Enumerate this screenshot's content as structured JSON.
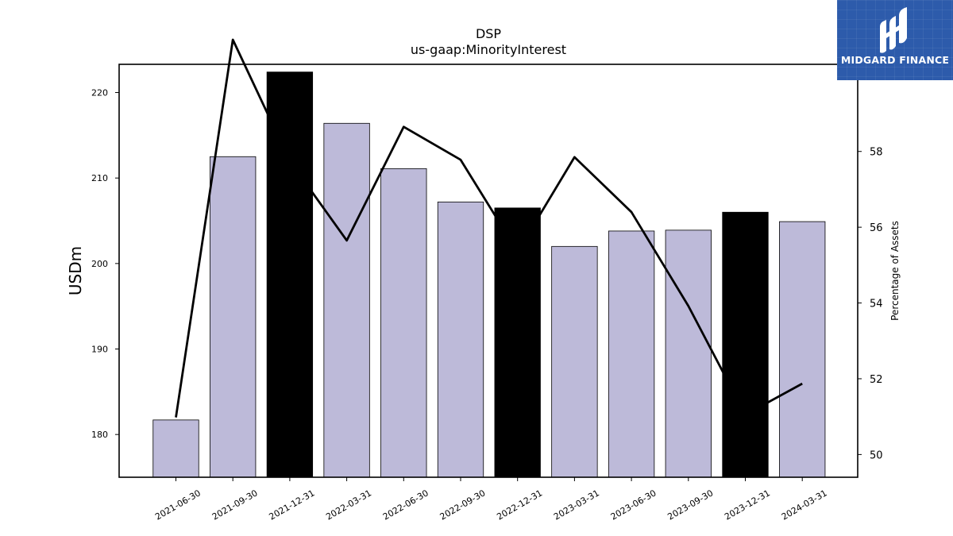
{
  "brand": {
    "name": "MIDGARD FINANCE",
    "logo_icon": "midgard-mark-icon",
    "bg_color": "#2d5bab"
  },
  "chart_data": {
    "type": "bar",
    "title": "DSP",
    "subtitle": "us-gaap:MinorityInterest",
    "ylabel": "USDm",
    "y2label": "Percentage of Assets",
    "categories": [
      "2021-06-30",
      "2021-09-30",
      "2021-12-31",
      "2022-03-31",
      "2022-06-30",
      "2022-09-30",
      "2022-12-31",
      "2023-03-31",
      "2023-06-30",
      "2023-09-30",
      "2023-12-31",
      "2024-03-31"
    ],
    "series": [
      {
        "axis": "left",
        "type": "bar",
        "values": [
          181.7,
          212.5,
          222.4,
          216.4,
          211.1,
          207.2,
          206.5,
          202.0,
          203.8,
          203.9,
          206.0,
          204.9
        ],
        "colors": [
          "#bdbad9",
          "#bdbad9",
          "#000000",
          "#bdbad9",
          "#bdbad9",
          "#bdbad9",
          "#000000",
          "#bdbad9",
          "#bdbad9",
          "#bdbad9",
          "#000000",
          "#bdbad9"
        ]
      },
      {
        "axis": "right",
        "type": "line",
        "color": "#000000",
        "values": [
          50.98,
          60.95,
          57.75,
          55.65,
          58.65,
          57.78,
          55.35,
          57.85,
          56.4,
          53.92,
          51.05,
          51.87
        ]
      }
    ],
    "ylim": [
      175,
      223.3
    ],
    "y2lim": [
      49.4,
      60.3
    ],
    "yticks": [
      180,
      190,
      200,
      210,
      220
    ],
    "y2ticks": [
      50,
      52,
      54,
      56,
      58
    ],
    "grid": false,
    "legend": "none"
  }
}
